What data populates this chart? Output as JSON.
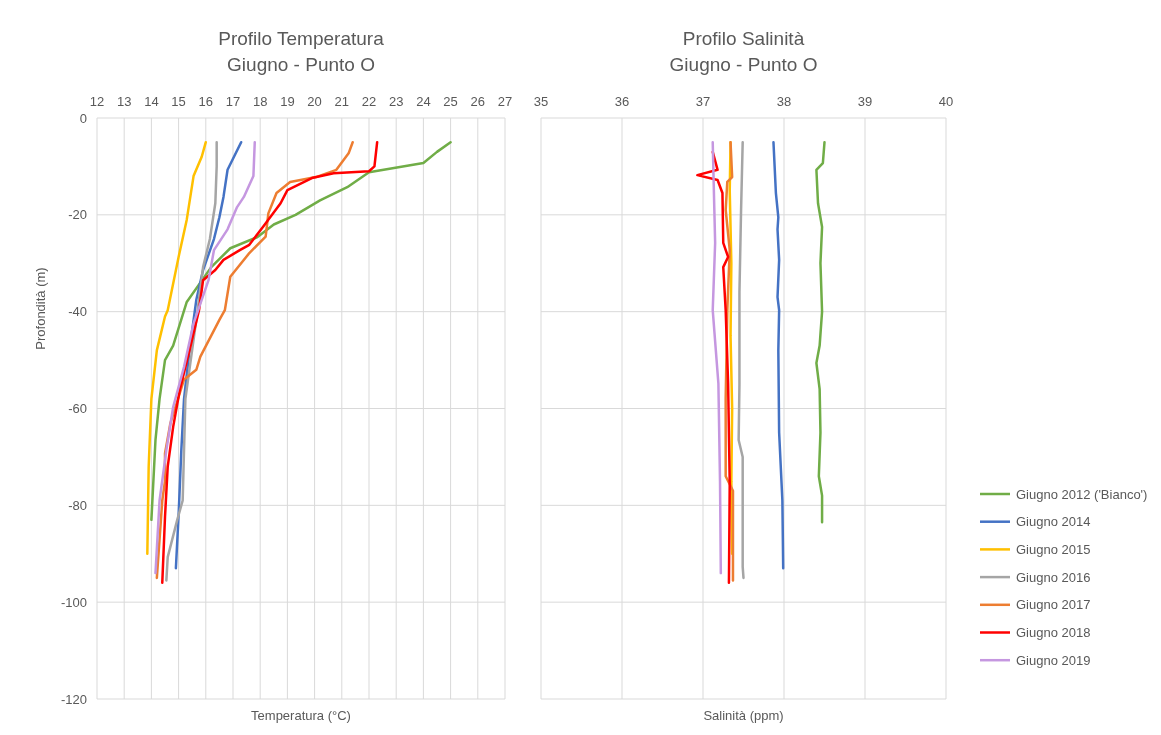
{
  "chart_data": [
    {
      "type": "line",
      "title": "Profilo Temperatura",
      "subtitle": "Giugno - Punto O",
      "xlabel": "Temperatura (°C)",
      "ylabel": "Profondità (m)",
      "xlim": [
        12,
        27
      ],
      "xticks": [
        12,
        13,
        14,
        15,
        16,
        17,
        18,
        19,
        20,
        21,
        22,
        23,
        24,
        25,
        26,
        27
      ],
      "ylim": [
        -120,
        0
      ],
      "yticks": [
        -120,
        -100,
        -80,
        -60,
        -40,
        -20,
        0
      ],
      "grid": true,
      "series": [
        {
          "color": "#70ad47",
          "x": [
            25,
            24.5,
            24,
            22,
            21.2,
            20.2,
            19.3,
            18.5,
            17.9,
            16.9,
            16.2,
            15.3,
            14.8,
            14.5,
            14.3,
            14.15,
            14
          ],
          "values": [
            -5,
            -7,
            -9.3,
            -11.2,
            -14.3,
            -17,
            -20,
            -22,
            -24.6,
            -26.9,
            -30.8,
            -38,
            -47,
            -50,
            -58,
            -66.5,
            -83
          ]
        },
        {
          "color": "#4472c4",
          "x": [
            17.3,
            16.8,
            16.65,
            16.5,
            16.3,
            15.9,
            15.65,
            15.4,
            15.2,
            15.1,
            15,
            14.9
          ],
          "values": [
            -5,
            -10.7,
            -16.3,
            -20.5,
            -25,
            -31.4,
            -37.6,
            -48,
            -58,
            -68.6,
            -82,
            -93
          ]
        },
        {
          "color": "#ffc000",
          "x": [
            16,
            15.85,
            15.55,
            15.3,
            15,
            14.6,
            14.5,
            14.2,
            14,
            13.9,
            13.85
          ],
          "values": [
            -5,
            -8,
            -12,
            -21,
            -28.7,
            -39.7,
            -41,
            -48,
            -58,
            -72,
            -90
          ]
        },
        {
          "color": "#a5a5a5",
          "x": [
            16.4,
            16.4,
            16.35,
            16.15,
            15.9,
            15.7,
            15.25,
            15.15,
            14.95,
            14.6,
            14.55
          ],
          "values": [
            -5,
            -10,
            -17.6,
            -25,
            -30.8,
            -39.7,
            -58,
            -79,
            -83,
            -90.7,
            -95.5
          ]
        },
        {
          "color": "#ed7d31",
          "x": [
            21.4,
            21.25,
            20.8,
            20.05,
            19.1,
            18.6,
            18.3,
            18.2,
            17.6,
            16.9,
            16.7,
            16.5,
            15.8,
            15.65,
            15.2,
            14.7,
            14.5,
            14.5,
            14.4,
            14.2
          ],
          "values": [
            -5,
            -7.3,
            -10.7,
            -12.2,
            -13.2,
            -15.5,
            -19.7,
            -24.5,
            -27.9,
            -32.8,
            -39.7,
            -41.7,
            -49.3,
            -52,
            -54,
            -63,
            -69.3,
            -75,
            -79,
            -95
          ]
        },
        {
          "color": "#ff0000",
          "x": [
            22.3,
            22.2,
            22,
            20.7,
            19.9,
            19,
            18.75,
            18.1,
            17.6,
            17.25,
            16.65,
            16.35,
            15.9,
            15.75,
            15.4,
            15.05,
            14.8,
            14.6,
            14.5,
            14.4
          ],
          "values": [
            -5,
            -10,
            -11,
            -11.4,
            -12.4,
            -14.9,
            -17.6,
            -22.5,
            -26.2,
            -27.3,
            -29.3,
            -31.4,
            -33.5,
            -39.7,
            -48,
            -56,
            -63.8,
            -72,
            -82.4,
            -96
          ]
        },
        {
          "color": "#c597e0",
          "x": [
            17.8,
            17.75,
            17.4,
            17.15,
            16.8,
            16.3,
            16.1,
            15.55,
            15.2,
            14.8,
            14.55,
            14.3,
            14.15
          ],
          "values": [
            -5,
            -12,
            -16.3,
            -18.4,
            -23,
            -27.3,
            -33.5,
            -42.4,
            -51.4,
            -59.7,
            -68.6,
            -79,
            -94
          ]
        }
      ]
    },
    {
      "type": "line",
      "title": "Profilo Salinità",
      "subtitle": "Giugno - Punto O",
      "xlabel": "Salinità (ppm)",
      "xlim": [
        35,
        40
      ],
      "xticks": [
        35,
        36,
        37,
        38,
        39,
        40
      ],
      "ylim": [
        -120,
        0
      ],
      "yticks": [
        -120,
        -100,
        -80,
        -60,
        -40,
        -20,
        0
      ],
      "tick_labels": "x",
      "grid": true,
      "legend": "right",
      "series": [
        {
          "name": "Giugno 2012 ('Bianco')",
          "color": "#70ad47",
          "x": [
            38.5,
            38.48,
            38.4,
            38.42,
            38.47,
            38.45,
            38.47,
            38.44,
            38.4,
            38.44,
            38.45,
            38.43,
            38.47,
            38.47
          ],
          "values": [
            -5,
            -9.3,
            -10.7,
            -17.6,
            -22.5,
            -30,
            -40,
            -47,
            -50.6,
            -56,
            -65,
            -74,
            -78,
            -83.5
          ]
        },
        {
          "name": "Giugno 2014",
          "color": "#4472c4",
          "x": [
            37.87,
            37.9,
            37.93,
            37.92,
            37.94,
            37.92,
            37.94,
            37.93,
            37.94,
            37.98,
            37.99
          ],
          "values": [
            -5,
            -15.5,
            -20.5,
            -23,
            -29.3,
            -37,
            -39.7,
            -48,
            -65,
            -79,
            -93
          ]
        },
        {
          "name": "Giugno 2015",
          "color": "#ffc000",
          "x": [
            37.34,
            37.33,
            37.35,
            37.34,
            37.36,
            37.35,
            37.36
          ],
          "values": [
            -5,
            -15,
            -30,
            -45,
            -60,
            -75,
            -90
          ]
        },
        {
          "name": "Giugno 2016",
          "color": "#a5a5a5",
          "x": [
            37.49,
            37.47,
            37.45,
            37.45,
            37.44,
            37.49,
            37.49,
            37.5
          ],
          "values": [
            -5,
            -19,
            -36,
            -55,
            -66.5,
            -70,
            -92.7,
            -95
          ]
        },
        {
          "name": "Giugno 2017",
          "color": "#ed7d31",
          "x": [
            37.34,
            37.36,
            37.3,
            37.28,
            37.33,
            37.3,
            37.28,
            37.28,
            37.37,
            37.37
          ],
          "values": [
            -5,
            -12.2,
            -13.2,
            -19,
            -27.3,
            -39.7,
            -58,
            -74,
            -77,
            -95.5
          ]
        },
        {
          "name": "Giugno 2018",
          "color": "#ff0000",
          "x": [
            37.12,
            37.18,
            36.93,
            37.18,
            37.24,
            37.25,
            37.31,
            37.25,
            37.28,
            37.31,
            37.33,
            37.32
          ],
          "values": [
            -7,
            -10.7,
            -11.8,
            -12.8,
            -15.5,
            -25.8,
            -28.7,
            -30.8,
            -39.7,
            -54.8,
            -75.4,
            -96
          ]
        },
        {
          "name": "Giugno 2019",
          "color": "#c597e0",
          "x": [
            37.12,
            37.14,
            37.15,
            37.12,
            37.19,
            37.21,
            37.22
          ],
          "values": [
            -5,
            -19,
            -25.8,
            -39.7,
            -54.8,
            -75,
            -94
          ]
        }
      ]
    }
  ]
}
